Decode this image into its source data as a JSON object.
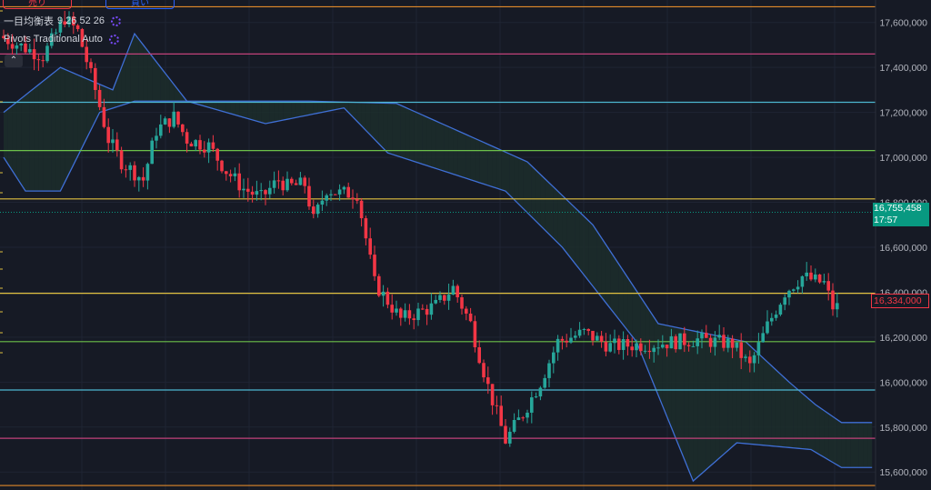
{
  "buttons": {
    "sell": "売り",
    "buy": "買い"
  },
  "legend": {
    "ichimoku": "一目均衡表",
    "ichimoku_params": "9 26 52 26",
    "pivots": "Pivots Traditional Auto"
  },
  "collapse_icon": "chevron-up-icon",
  "price_labels": {
    "last_value": "16,755,458",
    "countdown": "17:57",
    "current_value": "16,334,000"
  },
  "colors": {
    "background": "#161a25",
    "up_candle": "#26a69a",
    "down_candle": "#f23645",
    "cloud_line": "#3f6fd6",
    "cloud_bear": "#3a1f2a",
    "cloud_bull": "#1c2e2c"
  },
  "chart_data": {
    "type": "candlestick",
    "y_axis": {
      "min": 15520000,
      "max": 17700000,
      "ticks": [
        "17,600,000",
        "17,400,000",
        "17,200,000",
        "17,000,000",
        "16,800,000",
        "16,600,000",
        "16,400,000",
        "16,200,000",
        "16,000,000",
        "15,800,000",
        "15,600,000"
      ],
      "tick_values": [
        17600000,
        17400000,
        17200000,
        17000000,
        16800000,
        16600000,
        16400000,
        16200000,
        16000000,
        15800000,
        15600000
      ]
    },
    "pivot_levels": [
      {
        "value": 17670000,
        "color": "#e0892a"
      },
      {
        "value": 17460000,
        "color": "#c2417a"
      },
      {
        "value": 17245000,
        "color": "#4db6d0"
      },
      {
        "value": 17030000,
        "color": "#6cc04a"
      },
      {
        "value": 16815000,
        "color": "#e0c040"
      },
      {
        "value": 16395000,
        "color": "#e0c040"
      },
      {
        "value": 16180000,
        "color": "#6cc04a"
      },
      {
        "value": 15965000,
        "color": "#4db6d0"
      },
      {
        "value": 15750000,
        "color": "#c2417a"
      },
      {
        "value": 15540000,
        "color": "#e0892a"
      }
    ],
    "last_price_line": 16755458,
    "candle_anchors": [
      [
        0,
        17540000
      ],
      [
        10,
        17450000
      ],
      [
        15,
        17620000
      ],
      [
        18,
        17560000
      ],
      [
        22,
        17300000
      ],
      [
        25,
        17080000
      ],
      [
        28,
        16980000
      ],
      [
        33,
        16900000
      ],
      [
        36,
        17120000
      ],
      [
        40,
        17180000
      ],
      [
        43,
        17080000
      ],
      [
        48,
        17050000
      ],
      [
        52,
        16940000
      ],
      [
        56,
        16860000
      ],
      [
        60,
        16820000
      ],
      [
        64,
        16900000
      ],
      [
        66,
        16870000
      ],
      [
        70,
        16880000
      ],
      [
        72,
        16720000
      ],
      [
        75,
        16860000
      ],
      [
        78,
        16840000
      ],
      [
        82,
        16840000
      ],
      [
        86,
        16440000
      ],
      [
        92,
        16280000
      ],
      [
        100,
        16340000
      ],
      [
        104,
        16420000
      ],
      [
        108,
        16260000
      ],
      [
        112,
        15980000
      ],
      [
        116,
        15740000
      ],
      [
        120,
        15860000
      ],
      [
        124,
        16000000
      ],
      [
        128,
        16180000
      ],
      [
        134,
        16220000
      ],
      [
        140,
        16160000
      ],
      [
        150,
        16170000
      ],
      [
        160,
        16190000
      ],
      [
        168,
        16170000
      ],
      [
        172,
        16070000
      ],
      [
        176,
        16250000
      ],
      [
        180,
        16400000
      ],
      [
        184,
        16470000
      ],
      [
        187,
        16450000
      ],
      [
        189,
        16440000
      ],
      [
        191,
        16334000
      ]
    ],
    "cloud": {
      "span_a": [
        [
          0,
          17200000
        ],
        [
          13,
          17400000
        ],
        [
          25,
          17300000
        ],
        [
          30,
          17550000
        ],
        [
          42,
          17250000
        ],
        [
          60,
          17250000
        ],
        [
          70,
          17250000
        ],
        [
          90,
          17240000
        ],
        [
          120,
          16980000
        ],
        [
          135,
          16700000
        ],
        [
          150,
          16260000
        ],
        [
          170,
          16180000
        ],
        [
          180,
          16000000
        ],
        [
          186,
          15900000
        ],
        [
          192,
          15820000
        ],
        [
          199,
          15820000
        ]
      ],
      "span_b": [
        [
          0,
          17000000
        ],
        [
          5,
          16850000
        ],
        [
          13,
          16850000
        ],
        [
          22,
          17200000
        ],
        [
          30,
          17250000
        ],
        [
          42,
          17250000
        ],
        [
          60,
          17150000
        ],
        [
          78,
          17220000
        ],
        [
          88,
          17020000
        ],
        [
          115,
          16850000
        ],
        [
          128,
          16600000
        ],
        [
          145,
          16180000
        ],
        [
          158,
          15560000
        ],
        [
          168,
          15730000
        ],
        [
          185,
          15700000
        ],
        [
          192,
          15620000
        ],
        [
          199,
          15620000
        ]
      ]
    }
  }
}
